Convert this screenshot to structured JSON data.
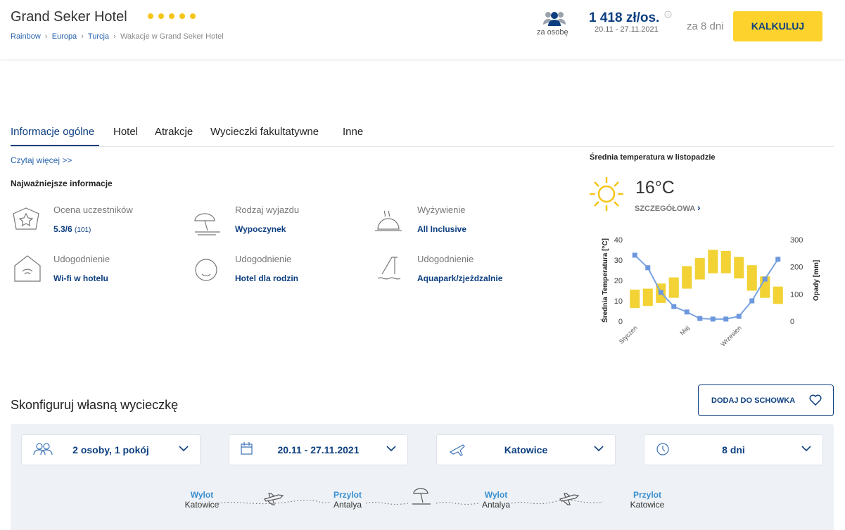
{
  "header": {
    "title": "Grand Seker Hotel",
    "stars": 5,
    "breadcrumbs": [
      "Rainbow",
      "Europa",
      "Turcja",
      "Wakacje w Grand Seker Hotel"
    ],
    "per_person_label": "za osobę",
    "price": "1 418 zł/os.",
    "dates": "20.11 - 27.11.2021",
    "duration": "za 8 dni",
    "button": "KALKULUJ"
  },
  "tabs": [
    "Informacje ogólne",
    "Hotel",
    "Atrakcje",
    "Wycieczki fakultatywne",
    "Inne"
  ],
  "read_more": "Czytaj więcej >>",
  "info_title": "Najważniejsze informacje",
  "info": [
    {
      "label": "Ocena uczestników",
      "value": "5.3/6",
      "extra": "(101)"
    },
    {
      "label": "Rodzaj wyjazdu",
      "value": "Wypoczynek"
    },
    {
      "label": "Wyżywienie",
      "value": "All Inclusive"
    },
    {
      "label": "Udogodnienie",
      "value": "Wi-fi w hotelu"
    },
    {
      "label": "Udogodnienie",
      "value": "Hotel dla rodzin"
    },
    {
      "label": "Udogodnienie",
      "value": "Aquapark/zjeżdzalnie"
    }
  ],
  "weather": {
    "title": "Średnia temperatura w listopadzie",
    "temperature": "16°C",
    "link": "SZCZEGÓŁOWA"
  },
  "chart_data": {
    "type": "combo",
    "categories": [
      "Styczen",
      null,
      null,
      null,
      "Maj",
      null,
      null,
      null,
      "Wrzesien",
      null,
      null,
      null
    ],
    "ylabel": "Średnia Temperatura [°C]",
    "y2label": "Opady [mm]",
    "ylim": [
      0,
      40
    ],
    "yticks": [
      0,
      10,
      20,
      30,
      40
    ],
    "y2lim": [
      0,
      300
    ],
    "y2ticks": [
      0,
      100,
      200,
      300
    ],
    "series": [
      {
        "type": "floating-bar",
        "color": "#f2d234",
        "low": [
          6.5,
          7.5,
          9,
          11.5,
          16,
          20.5,
          23.5,
          23.5,
          21,
          15,
          11.5,
          8.5
        ],
        "high": [
          15.5,
          16,
          18.5,
          21.5,
          27,
          31,
          35,
          34.5,
          31.5,
          27.5,
          22,
          17
        ]
      },
      {
        "type": "line",
        "color": "#7aa3e0",
        "axis": "y2",
        "values": [
          243,
          197,
          106,
          54,
          34,
          10,
          8,
          8,
          18,
          75,
          155,
          228
        ]
      }
    ]
  },
  "configure": {
    "title": "Skonfiguruj własną wycieczkę",
    "button": "DODAJ DO SCHOWKA",
    "selects": [
      "2 osoby, 1 pokój",
      "20.11 - 27.11.2021",
      "Katowice",
      "8 dni"
    ],
    "route": [
      {
        "label": "Wylot",
        "city": "Katowice"
      },
      {
        "label": "Przylot",
        "city": "Antalya"
      },
      {
        "label": "Wylot",
        "city": "Antalya"
      },
      {
        "label": "Przylot",
        "city": "Katowice"
      }
    ]
  }
}
